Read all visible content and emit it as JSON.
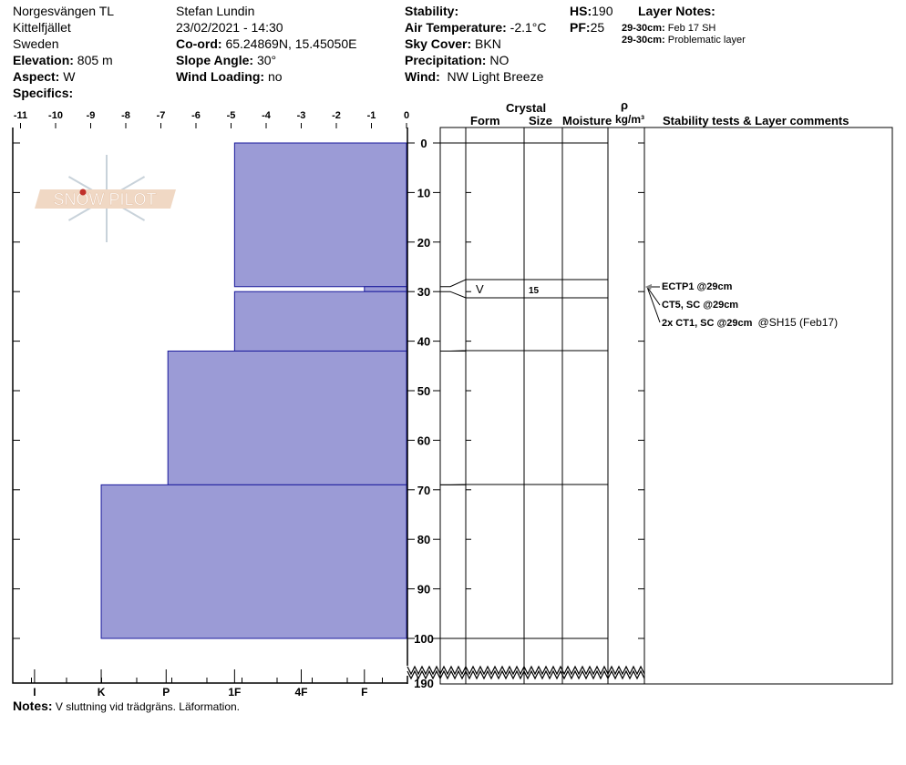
{
  "header": {
    "location": "Norgesvängen TL",
    "area": "Kittelfjället",
    "country": "Sweden",
    "elevation_label": "Elevation:",
    "elevation": "805 m",
    "aspect_label": "Aspect:",
    "aspect": "W",
    "specifics_label": "Specifics:",
    "observer": "Stefan Lundin",
    "datetime": "23/02/2021 - 14:30",
    "coord_label": "Co-ord:",
    "coord": "65.24869N, 15.45050E",
    "slope_label": "Slope Angle:",
    "slope": "30°",
    "windload_label": "Wind Loading:",
    "windload": "no",
    "stability_label": "Stability:",
    "airtemp_label": "Air Temperature:",
    "airtemp": "-2.1°C",
    "sky_label": "Sky Cover:",
    "sky": "BKN",
    "precip_label": "Precipitation:",
    "precip": "NO",
    "wind_label": "Wind:",
    "wind": "NW Light Breeze",
    "hs_label": "HS:",
    "hs": "190",
    "pf_label": "PF:",
    "pf": "25",
    "layer_notes_label": "Layer Notes:",
    "layer_notes": [
      {
        "range": "29-30cm:",
        "text": "Feb 17 SH"
      },
      {
        "range": "29-30cm:",
        "text": "Problematic layer"
      }
    ]
  },
  "columns": {
    "crystal": "Crystal",
    "form": "Form",
    "size": "Size",
    "moisture": "Moisture",
    "rho": "ρ",
    "density": "kg/m³",
    "comments": "Stability tests & Layer comments"
  },
  "chart_data": {
    "type": "bar",
    "x_ticks": [
      "-11",
      "-10",
      "-9",
      "-8",
      "-7",
      "-6",
      "-5",
      "-4",
      "-3",
      "-2",
      "-1",
      "0"
    ],
    "hardness_labels": [
      {
        "label": "I",
        "v": -10.6
      },
      {
        "label": "K",
        "v": -8.7
      },
      {
        "label": "P",
        "v": -6.85
      },
      {
        "label": "1F",
        "v": -4.9
      },
      {
        "label": "4F",
        "v": -3
      },
      {
        "label": "F",
        "v": -1.2
      }
    ],
    "depth_ticks": [
      "0",
      "10",
      "20",
      "30",
      "40",
      "50",
      "60",
      "70",
      "80",
      "90",
      "100"
    ],
    "depth_bottom": "190",
    "layers": [
      {
        "top": 0,
        "bottom": 29,
        "hardness": "1F",
        "value": -4.9
      },
      {
        "top": 29,
        "bottom": 30,
        "hardness": "F",
        "value": -1.2
      },
      {
        "top": 30,
        "bottom": 42,
        "hardness": "1F",
        "value": -4.9
      },
      {
        "top": 42,
        "bottom": 69,
        "hardness": "P",
        "value": -6.8
      },
      {
        "top": 69,
        "bottom": 100,
        "hardness": "K",
        "value": -8.7
      }
    ],
    "bar_color": "#9b9bd6",
    "crystal_layer": {
      "form": "V",
      "size": "15"
    }
  },
  "stability_tests": [
    {
      "text": "ECTP1 @29cm",
      "extra": ""
    },
    {
      "text": "CT5, SC @29cm",
      "extra": ""
    },
    {
      "text": "2x CT1, SC @29cm",
      "extra": "@SH15 (Feb17)"
    }
  ],
  "logo": {
    "text": "SNOW PILOT"
  },
  "notes_label": "Notes:",
  "notes": "V sluttning vid trädgräns. Läformation."
}
